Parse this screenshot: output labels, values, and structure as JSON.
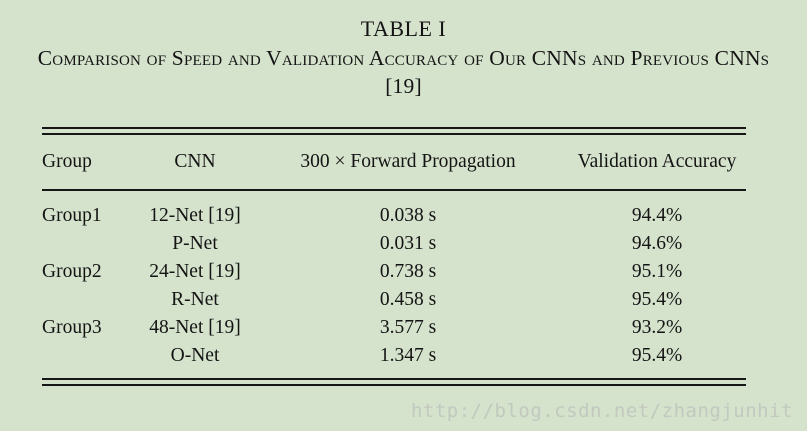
{
  "colors": {
    "background": "#d5e2cc",
    "text": "#141414",
    "rule": "#161616",
    "watermark_text": "#c2c9bf"
  },
  "caption": {
    "label": "TABLE I",
    "title": "Comparison of Speed and Validation Accuracy of Our CNNs and Previous CNNs [19]"
  },
  "chart_data": {
    "type": "table",
    "title": "TABLE I — Comparison of Speed and Validation Accuracy of Our CNNs and Previous CNNs [19]",
    "columns": [
      "Group",
      "CNN",
      "300 × Forward Propagation",
      "Validation Accuracy"
    ],
    "rows": [
      [
        "Group1",
        "12-Net [19]",
        "0.038 s",
        "94.4%"
      ],
      [
        "",
        "P-Net",
        "0.031 s",
        "94.6%"
      ],
      [
        "Group2",
        "24-Net [19]",
        "0.738 s",
        "95.1%"
      ],
      [
        "",
        "R-Net",
        "0.458 s",
        "95.4%"
      ],
      [
        "Group3",
        "48-Net [19]",
        "3.577 s",
        "93.2%"
      ],
      [
        "",
        "O-Net",
        "1.347 s",
        "95.4%"
      ]
    ]
  },
  "watermark": {
    "text": "http://blog.csdn.net/zhangjunhit"
  }
}
